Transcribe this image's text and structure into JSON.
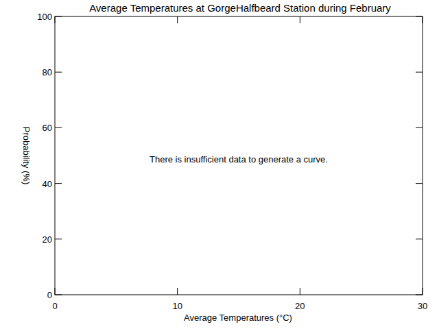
{
  "chart_data": {
    "type": "line",
    "title": "Average Temperatures at GorgeHalfbeard Station during February",
    "x_label": "Average Temperatures (°C)",
    "y_label": "Probability (%)",
    "annotations": [
      "There is insufficient data to generate a curve."
    ],
    "series": [],
    "xlim": [
      0,
      30
    ],
    "xticks": [
      0,
      10,
      20,
      30
    ],
    "ylim": [
      0,
      100
    ],
    "yticks": [
      0,
      20,
      40,
      60,
      80,
      100
    ],
    "grid": false
  }
}
